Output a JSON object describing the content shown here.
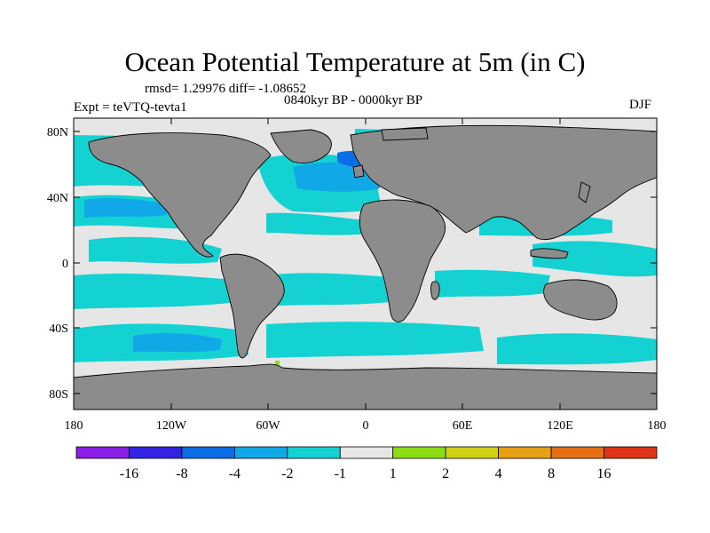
{
  "title": "Ocean Potential Temperature at 5m (in C)",
  "stats_line": "rmsd= 1.29976 diff= -1.08652",
  "period": "0840kyr BP - 0000kyr BP",
  "experiment": "Expt = teVTQ-tevta1",
  "season": "DJF",
  "lat_labels": [
    "80N",
    "40N",
    "0",
    "40S",
    "80S"
  ],
  "lon_labels": [
    "180",
    "120W",
    "60W",
    "0",
    "60E",
    "120E",
    "180"
  ],
  "colorbar": {
    "labels": [
      "-16",
      "-8",
      "-4",
      "-2",
      "-1",
      "1",
      "2",
      "4",
      "8",
      "16"
    ],
    "colors": [
      "#8a1ee6",
      "#3224e0",
      "#0a6ee6",
      "#10a8e6",
      "#14d2d2",
      "#e6e6e6",
      "#8cdc14",
      "#d2d214",
      "#e6a014",
      "#e66e14",
      "#e03214"
    ]
  },
  "colors": {
    "land": "#8c8c8c",
    "ocean_neutral": "#e6e6e6",
    "ocean_cool": "#14d2d2",
    "ocean_cooler": "#10a8e6",
    "ocean_coldest": "#0a6ee6",
    "ocean_warm": "#8cdc14"
  }
}
